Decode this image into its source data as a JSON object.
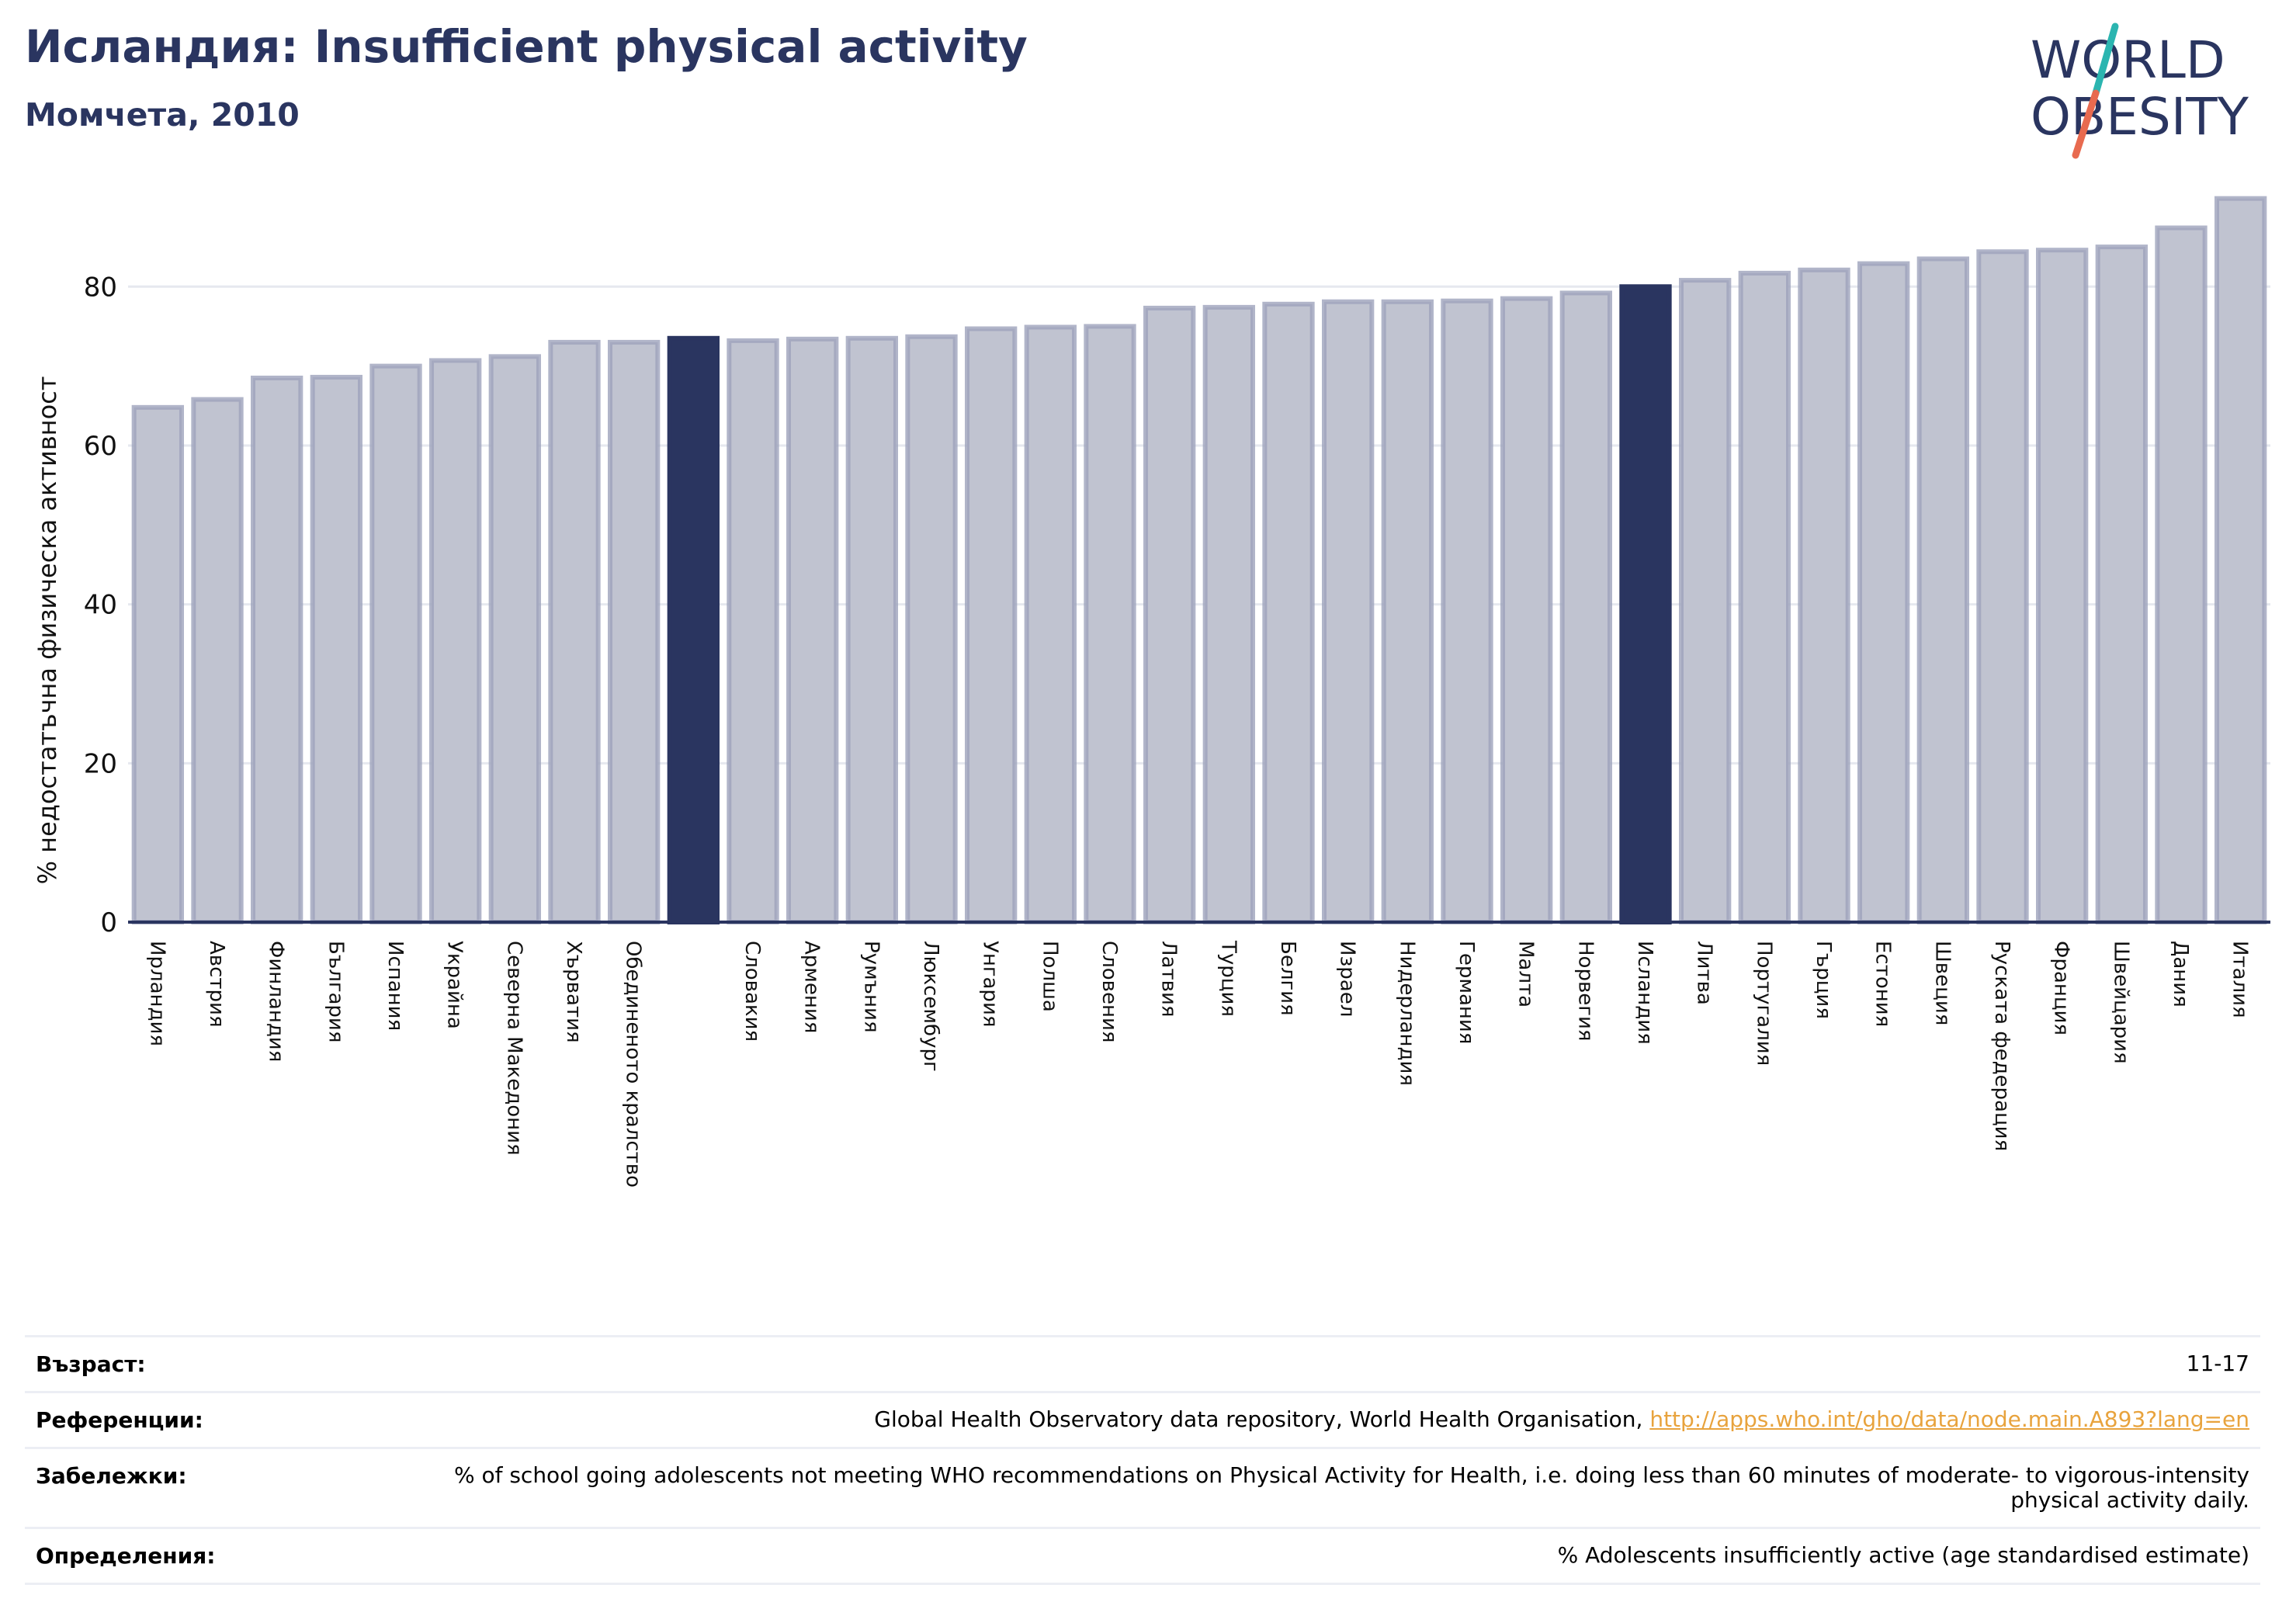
{
  "header": {
    "title": "Исландия: Insufficient physical activity",
    "subtitle": "Момчета, 2010"
  },
  "logo": {
    "line1": "WORLD",
    "line2": "OBESITY",
    "accent_colors": [
      "#2bb5b0",
      "#e86a4f"
    ],
    "text_color": "#2a3560"
  },
  "chart_data": {
    "type": "bar",
    "ylabel": "% недостатъчна физическа активност",
    "ylim": [
      0,
      94
    ],
    "yticks": [
      0,
      20,
      40,
      60,
      80
    ],
    "grid": true,
    "colors": {
      "default": "#c0c3d0",
      "default_edge": "#9ea3bc",
      "highlight": "#2a3560"
    },
    "categories": [
      "Ирландия",
      "Австрия",
      "Финландия",
      "България",
      "Испания",
      "Украйна",
      "Северна Македония",
      "Хърватия",
      "Обединеното кралство",
      "",
      "Словакия",
      "Армения",
      "Румъния",
      "Люксембург",
      "Унгария",
      "Полша",
      "Словения",
      "Латвия",
      "Турция",
      "Белгия",
      "Израел",
      "Нидерландия",
      "Германия",
      "Малта",
      "Норвегия",
      "Исландия",
      "Литва",
      "Португалия",
      "Гърция",
      "Естония",
      "Швеция",
      "Руската федерация",
      "Франция",
      "Швейцария",
      "Дания",
      "Италия"
    ],
    "values": [
      64.8,
      65.8,
      68.5,
      68.6,
      70.0,
      70.7,
      71.2,
      73.0,
      73.0,
      73.5,
      73.2,
      73.4,
      73.5,
      73.7,
      74.7,
      74.9,
      75.0,
      77.3,
      77.4,
      77.8,
      78.1,
      78.1,
      78.2,
      78.5,
      79.2,
      80.0,
      80.8,
      81.7,
      82.1,
      82.9,
      83.5,
      84.4,
      84.6,
      85.0,
      87.4,
      91.1
    ],
    "highlight": [
      "",
      "Исландия"
    ]
  },
  "info": [
    {
      "key": "Възраст:",
      "value": "11-17"
    },
    {
      "key": "Референции:",
      "value": "Global Health Observatory data repository, World Health Organisation, ",
      "link": "http://apps.who.int/gho/data/node.main.A893?lang=en"
    },
    {
      "key": "Забележки:",
      "value": "% of school going adolescents not meeting WHO recommendations on Physical Activity for Health, i.e. doing less than 60 minutes of moderate- to vigorous-intensity physical activity daily."
    },
    {
      "key": "Определения:",
      "value": "% Adolescents insufficiently active (age standardised estimate)"
    }
  ]
}
